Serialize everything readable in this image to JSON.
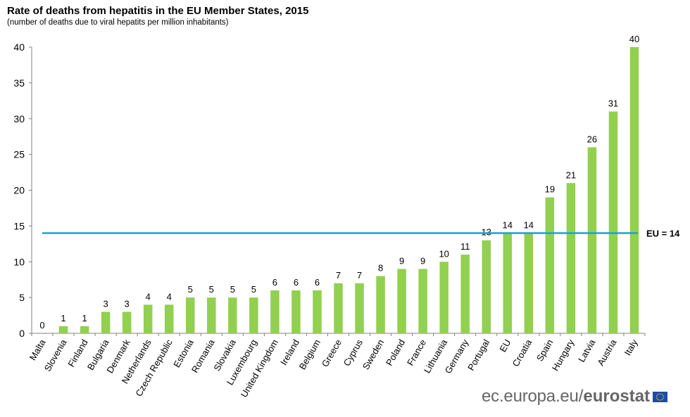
{
  "title": "Rate of deaths from hepatitis in the EU Member States, 2015",
  "subtitle": "(number of deaths due to viral hepatits per million inhabitants)",
  "reference_line": {
    "label": "EU = 14",
    "value": 14,
    "color": "#16a3d8"
  },
  "footer": {
    "site": "ec.europa.eu",
    "separator": "/",
    "brand": "eurostat",
    "flag_color": "#1f4aa8"
  },
  "colors": {
    "bar": "#92d050",
    "axis": "#808080"
  },
  "chart_data": {
    "type": "bar",
    "title": "Rate of deaths from hepatitis in the EU Member States, 2015",
    "subtitle": "(number of deaths due to viral hepatits per million inhabitants)",
    "xlabel": "",
    "ylabel": "",
    "ylim": [
      0,
      40
    ],
    "yticks": [
      0,
      5,
      10,
      15,
      20,
      25,
      30,
      35,
      40
    ],
    "grid": false,
    "categories": [
      "Malta",
      "Slovenia",
      "Finland",
      "Bulgaria",
      "Denmark",
      "Netherlands",
      "Czech Republic",
      "Estonia",
      "Romania",
      "Slovakia",
      "Luxembourg",
      "United Kingdom",
      "Ireland",
      "Belgium",
      "Greece",
      "Cyprus",
      "Sweden",
      "Poland",
      "France",
      "Lithuania",
      "Germany",
      "Portugal",
      "EU",
      "Croatia",
      "Spain",
      "Hungary",
      "Latvia",
      "Austria",
      "Italy"
    ],
    "values": [
      0,
      1,
      1,
      3,
      3,
      4,
      4,
      5,
      5,
      5,
      5,
      6,
      6,
      6,
      7,
      7,
      8,
      9,
      9,
      10,
      11,
      13,
      14,
      14,
      19,
      21,
      26,
      31,
      40
    ],
    "data_labels": [
      "0",
      "1",
      "1",
      "3",
      "3",
      "4",
      "4",
      "5",
      "5",
      "5",
      "5",
      "6",
      "6",
      "6",
      "7",
      "7",
      "8",
      "9",
      "9",
      "10",
      "11",
      "13",
      "14",
      "14",
      "19",
      "21",
      "26",
      "31",
      "40"
    ]
  }
}
